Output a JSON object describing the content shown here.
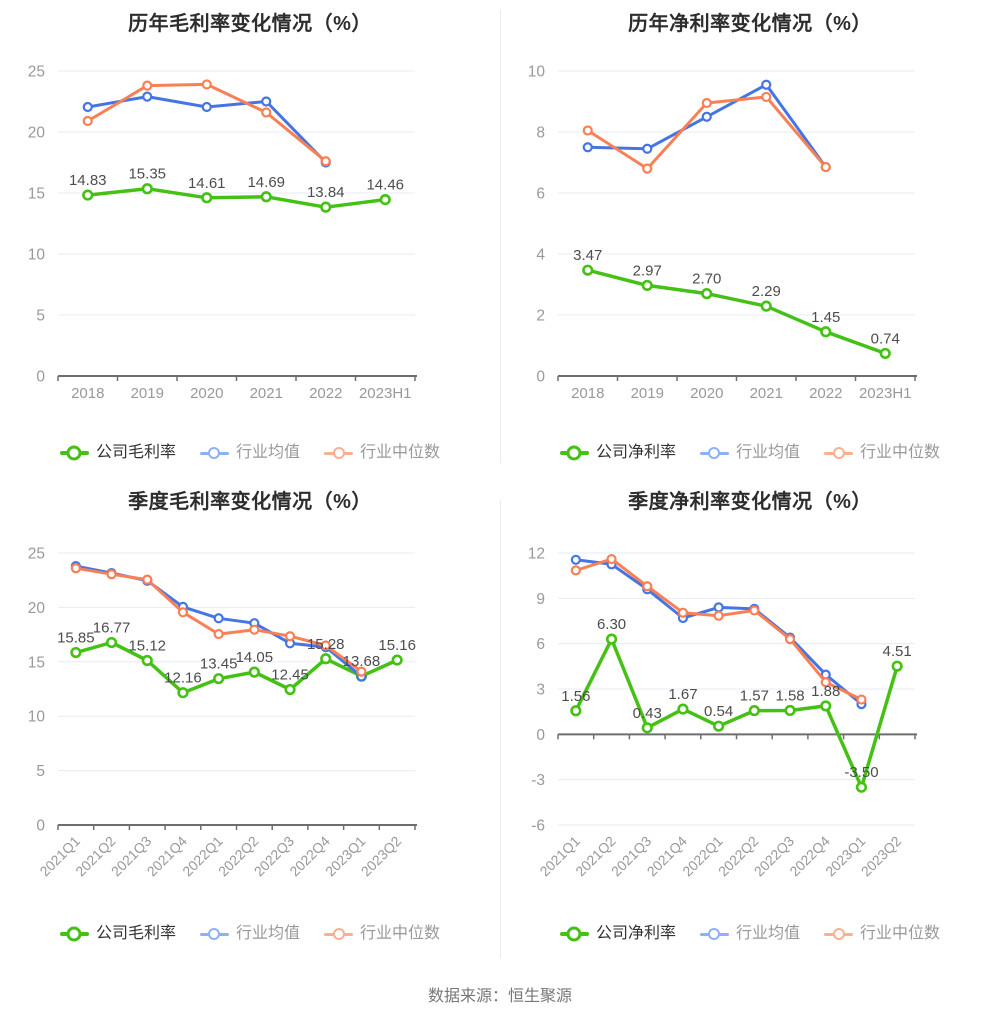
{
  "footer": {
    "source_text": "数据来源：恒生聚源"
  },
  "palette": {
    "company_line": "#44c114",
    "industry_avg_line": "#4575e5",
    "industry_median_line": "#f97f55",
    "grid_line": "#e6ebf5",
    "axis_line": "#6e6e6e",
    "tick_label": "#999999",
    "data_label": "#4d4d4d",
    "title_text": "#2d2d2d"
  },
  "chart_data": [
    {
      "type": "line",
      "title": "历年毛利率变化情况（%）",
      "categories": [
        "2018",
        "2019",
        "2020",
        "2021",
        "2022",
        "2023H1"
      ],
      "ylim": [
        0,
        25
      ],
      "ystep": 5,
      "x_label_rotate": false,
      "grid": true,
      "legend_position": "bottom",
      "series": [
        {
          "name": "公司毛利率",
          "color": "#44c114",
          "legend_color": "#44c114",
          "legend_text_color": "#333333",
          "show_labels": true,
          "values": [
            14.83,
            15.35,
            14.61,
            14.69,
            13.84,
            14.46
          ]
        },
        {
          "name": "行业均值",
          "color": "#4575e5",
          "legend_color": "#8db0f8",
          "legend_text_color": "#999999",
          "show_labels": false,
          "values": [
            22.05,
            22.9,
            22.05,
            22.5,
            17.5,
            null
          ]
        },
        {
          "name": "行业中位数",
          "color": "#f97f55",
          "legend_color": "#fbaf8f",
          "legend_text_color": "#999999",
          "show_labels": false,
          "values": [
            20.9,
            23.8,
            23.9,
            21.6,
            17.6,
            null
          ]
        }
      ]
    },
    {
      "type": "line",
      "title": "历年净利率变化情况（%）",
      "categories": [
        "2018",
        "2019",
        "2020",
        "2021",
        "2022",
        "2023H1"
      ],
      "ylim": [
        0,
        10
      ],
      "ystep": 2,
      "x_label_rotate": false,
      "grid": true,
      "legend_position": "bottom",
      "series": [
        {
          "name": "公司净利率",
          "color": "#44c114",
          "legend_color": "#44c114",
          "legend_text_color": "#333333",
          "show_labels": true,
          "values": [
            3.47,
            2.97,
            2.7,
            2.29,
            1.45,
            0.74
          ]
        },
        {
          "name": "行业均值",
          "color": "#4575e5",
          "legend_color": "#8db0f8",
          "legend_text_color": "#999999",
          "show_labels": false,
          "values": [
            7.5,
            7.45,
            8.5,
            9.55,
            6.85,
            null
          ]
        },
        {
          "name": "行业中位数",
          "color": "#f97f55",
          "legend_color": "#fbaf8f",
          "legend_text_color": "#999999",
          "show_labels": false,
          "values": [
            8.05,
            6.8,
            8.95,
            9.15,
            6.85,
            null
          ]
        }
      ]
    },
    {
      "type": "line",
      "title": "季度毛利率变化情况（%）",
      "categories": [
        "2021Q1",
        "2021Q2",
        "2021Q3",
        "2021Q4",
        "2022Q1",
        "2022Q2",
        "2022Q3",
        "2022Q4",
        "2023Q1",
        "2023Q2"
      ],
      "ylim": [
        0,
        25
      ],
      "ystep": 5,
      "x_label_rotate": true,
      "grid": true,
      "legend_position": "bottom",
      "series": [
        {
          "name": "公司毛利率",
          "color": "#44c114",
          "legend_color": "#44c114",
          "legend_text_color": "#333333",
          "show_labels": true,
          "values": [
            15.85,
            16.77,
            15.12,
            12.16,
            13.45,
            14.05,
            12.45,
            15.28,
            13.68,
            15.16
          ]
        },
        {
          "name": "行业均值",
          "color": "#4575e5",
          "legend_color": "#8db0f8",
          "legend_text_color": "#999999",
          "show_labels": false,
          "values": [
            23.8,
            23.15,
            22.45,
            20.05,
            19.0,
            18.55,
            16.7,
            16.35,
            13.65,
            null
          ]
        },
        {
          "name": "行业中位数",
          "color": "#f97f55",
          "legend_color": "#fbaf8f",
          "legend_text_color": "#999999",
          "show_labels": false,
          "values": [
            23.6,
            23.05,
            22.55,
            19.55,
            17.55,
            17.95,
            17.35,
            16.5,
            14.1,
            null
          ]
        }
      ]
    },
    {
      "type": "line",
      "title": "季度净利率变化情况（%）",
      "categories": [
        "2021Q1",
        "2021Q2",
        "2021Q3",
        "2021Q4",
        "2022Q1",
        "2022Q2",
        "2022Q3",
        "2022Q4",
        "2023Q1",
        "2023Q2"
      ],
      "ylim": [
        -6,
        12
      ],
      "ystep": 3,
      "x_label_rotate": true,
      "grid": true,
      "legend_position": "bottom",
      "series": [
        {
          "name": "公司净利率",
          "color": "#44c114",
          "legend_color": "#44c114",
          "legend_text_color": "#333333",
          "show_labels": true,
          "values": [
            1.56,
            6.3,
            0.43,
            1.67,
            0.54,
            1.57,
            1.58,
            1.88,
            -3.5,
            4.51
          ]
        },
        {
          "name": "行业均值",
          "color": "#4575e5",
          "legend_color": "#8db0f8",
          "legend_text_color": "#999999",
          "show_labels": false,
          "values": [
            11.55,
            11.25,
            9.6,
            7.7,
            8.4,
            8.3,
            6.4,
            3.95,
            2.0,
            null
          ]
        },
        {
          "name": "行业中位数",
          "color": "#f97f55",
          "legend_color": "#fbaf8f",
          "legend_text_color": "#999999",
          "show_labels": false,
          "values": [
            10.85,
            11.6,
            9.8,
            8.05,
            7.85,
            8.2,
            6.3,
            3.45,
            2.3,
            null
          ]
        }
      ]
    }
  ]
}
